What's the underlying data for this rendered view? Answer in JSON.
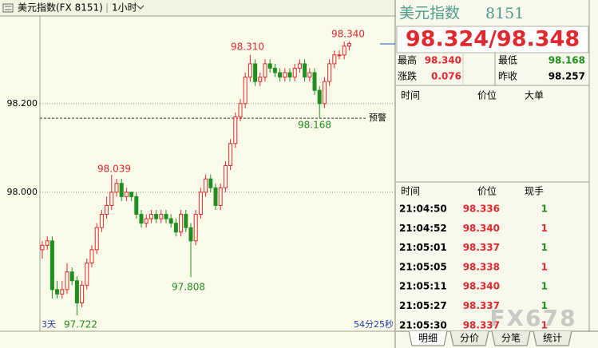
{
  "toolbar": {
    "title": "美元指数(FX 8151)",
    "period": "1小时"
  },
  "chart": {
    "type": "candlestick",
    "ylim": [
      97.686,
      98.398
    ],
    "yticks": [
      {
        "value": 98.2,
        "label": "98.200"
      },
      {
        "value": 98.0,
        "label": "98.000"
      }
    ],
    "grid": true,
    "up_color": "#e0282e",
    "down_color": "#1f8f1f",
    "candles": [
      [
        97.87,
        97.89,
        97.85,
        97.88
      ],
      [
        97.88,
        97.9,
        97.87,
        97.89
      ],
      [
        97.89,
        97.9,
        97.76,
        97.78
      ],
      [
        97.78,
        97.8,
        97.76,
        97.77
      ],
      [
        97.77,
        97.8,
        97.76,
        97.78
      ],
      [
        97.78,
        97.84,
        97.77,
        97.82
      ],
      [
        97.82,
        97.83,
        97.79,
        97.8
      ],
      [
        97.8,
        97.81,
        97.722,
        97.75
      ],
      [
        97.75,
        97.8,
        97.74,
        97.79
      ],
      [
        97.79,
        97.85,
        97.78,
        97.84
      ],
      [
        97.84,
        97.88,
        97.83,
        97.87
      ],
      [
        97.87,
        97.93,
        97.86,
        97.92
      ],
      [
        97.92,
        97.96,
        97.91,
        97.95
      ],
      [
        97.95,
        97.99,
        97.94,
        97.97
      ],
      [
        97.97,
        98.039,
        97.96,
        98.0
      ],
      [
        98.0,
        98.03,
        97.99,
        98.02
      ],
      [
        98.02,
        98.03,
        97.98,
        97.99
      ],
      [
        97.99,
        98.01,
        97.98,
        98.0
      ],
      [
        98.0,
        98.0,
        97.98,
        97.99
      ],
      [
        97.99,
        98.0,
        97.94,
        97.95
      ],
      [
        97.95,
        97.96,
        97.92,
        97.93
      ],
      [
        97.93,
        97.95,
        97.92,
        97.94
      ],
      [
        97.94,
        97.96,
        97.93,
        97.95
      ],
      [
        97.95,
        97.96,
        97.93,
        97.94
      ],
      [
        97.94,
        97.96,
        97.93,
        97.95
      ],
      [
        97.95,
        97.96,
        97.93,
        97.94
      ],
      [
        97.94,
        97.95,
        97.92,
        97.93
      ],
      [
        97.93,
        97.94,
        97.9,
        97.91
      ],
      [
        97.91,
        97.96,
        97.9,
        97.95
      ],
      [
        97.95,
        97.96,
        97.91,
        97.92
      ],
      [
        97.92,
        97.93,
        97.808,
        97.89
      ],
      [
        97.89,
        97.96,
        97.88,
        97.95
      ],
      [
        97.95,
        98.01,
        97.94,
        98.0
      ],
      [
        98.0,
        98.04,
        97.99,
        98.03
      ],
      [
        98.03,
        98.04,
        98.0,
        98.01
      ],
      [
        98.01,
        98.02,
        97.96,
        97.97
      ],
      [
        97.97,
        98.02,
        97.96,
        98.01
      ],
      [
        98.01,
        98.07,
        98.0,
        98.06
      ],
      [
        98.06,
        98.12,
        98.05,
        98.11
      ],
      [
        98.11,
        98.18,
        98.1,
        98.17
      ],
      [
        98.17,
        98.21,
        98.16,
        98.2
      ],
      [
        98.2,
        98.27,
        98.19,
        98.26
      ],
      [
        98.26,
        98.31,
        98.25,
        98.29
      ],
      [
        98.29,
        98.3,
        98.24,
        98.25
      ],
      [
        98.25,
        98.27,
        98.24,
        98.26
      ],
      [
        98.26,
        98.3,
        98.25,
        98.29
      ],
      [
        98.29,
        98.3,
        98.27,
        98.28
      ],
      [
        98.28,
        98.29,
        98.26,
        98.27
      ],
      [
        98.27,
        98.28,
        98.25,
        98.26
      ],
      [
        98.26,
        98.28,
        98.25,
        98.27
      ],
      [
        98.27,
        98.28,
        98.25,
        98.26
      ],
      [
        98.26,
        98.29,
        98.25,
        98.28
      ],
      [
        98.28,
        98.3,
        98.27,
        98.29
      ],
      [
        98.29,
        98.3,
        98.25,
        98.26
      ],
      [
        98.26,
        98.28,
        98.25,
        98.27
      ],
      [
        98.27,
        98.28,
        98.22,
        98.23
      ],
      [
        98.23,
        98.24,
        98.168,
        98.2
      ],
      [
        98.2,
        98.26,
        98.19,
        98.25
      ],
      [
        98.25,
        98.3,
        98.24,
        98.29
      ],
      [
        98.29,
        98.32,
        98.28,
        98.31
      ],
      [
        98.31,
        98.32,
        98.3,
        98.31
      ],
      [
        98.31,
        98.34,
        98.3,
        98.33
      ],
      [
        98.33,
        98.34,
        98.32,
        98.336
      ]
    ],
    "extreme_labels": [
      {
        "text": "98.340",
        "color": "#e0282e"
      },
      {
        "text": "98.310",
        "color": "#e0282e"
      },
      {
        "text": "98.039",
        "color": "#e0282e"
      },
      {
        "text": "97.808",
        "color": "#1f8f1f"
      },
      {
        "text": "97.722",
        "color": "#1f8f1f"
      },
      {
        "text": "98.168",
        "color": "#1f8f1f"
      }
    ],
    "alert": {
      "label": "预警",
      "value": 98.167
    },
    "range_label": "3天",
    "countdown": "54分25秒"
  },
  "quote": {
    "name": "美元指数",
    "code": "8151",
    "price": "98.324/98.348",
    "stats": [
      {
        "label": "最高",
        "value": "98.340",
        "color": "#e0282e"
      },
      {
        "label": "最低",
        "value": "98.168",
        "color": "#1f8f1f"
      },
      {
        "label": "涨跌",
        "value": "0.076",
        "color": "#e0282e"
      },
      {
        "label": "昨收",
        "value": "98.257",
        "color": "#000000"
      }
    ]
  },
  "big_orders": {
    "headers": [
      "时间",
      "价位",
      "大单"
    ]
  },
  "ticks": {
    "headers": [
      "时间",
      "价位",
      "现手"
    ],
    "rows": [
      {
        "time": "21:04:50",
        "price": "98.336",
        "volume": "1",
        "color": "#1f8f1f"
      },
      {
        "time": "21:04:52",
        "price": "98.340",
        "volume": "1",
        "color": "#e0282e"
      },
      {
        "time": "21:05:01",
        "price": "98.337",
        "volume": "1",
        "color": "#1f8f1f"
      },
      {
        "time": "21:05:05",
        "price": "98.338",
        "volume": "1",
        "color": "#e0282e"
      },
      {
        "time": "21:05:11",
        "price": "98.340",
        "volume": "1",
        "color": "#1f8f1f"
      },
      {
        "time": "21:05:27",
        "price": "98.337",
        "volume": "1",
        "color": "#1f8f1f"
      },
      {
        "time": "21:05:30",
        "price": "98.337",
        "volume": "1",
        "color": "#e0282e"
      }
    ]
  },
  "tabs": [
    "明细",
    "分价",
    "分笔",
    "统计"
  ],
  "watermark": "FX678"
}
